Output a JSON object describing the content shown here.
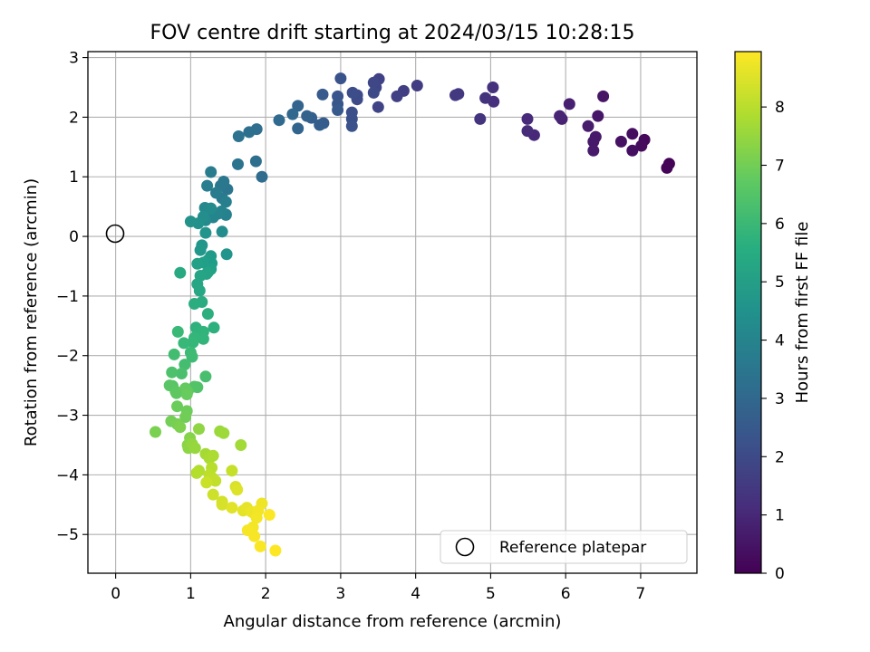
{
  "chart_data": {
    "type": "scatter",
    "title": "FOV centre drift starting at 2024/03/15 10:28:15",
    "xlabel": "Angular distance from reference (arcmin)",
    "ylabel": "Rotation from reference (arcmin)",
    "xlim": [
      -0.37,
      7.75
    ],
    "ylim": [
      -5.65,
      3.1
    ],
    "xticks": [
      0,
      1,
      2,
      3,
      4,
      5,
      6,
      7
    ],
    "yticks": [
      -5,
      -4,
      -3,
      -2,
      -1,
      0,
      1,
      2,
      3
    ],
    "xtick_labels": [
      "0",
      "1",
      "2",
      "3",
      "4",
      "5",
      "6",
      "7"
    ],
    "ytick_labels": [
      "−5",
      "−4",
      "−3",
      "−2",
      "−1",
      "0",
      "1",
      "2",
      "3"
    ],
    "grid": true,
    "colormap": "viridis",
    "colorbar": {
      "label": "Hours from first FF file",
      "range": [
        0,
        8.95
      ],
      "ticks": [
        0,
        1,
        2,
        3,
        4,
        5,
        6,
        7,
        8
      ],
      "tick_labels": [
        "0",
        "1",
        "2",
        "3",
        "4",
        "5",
        "6",
        "7",
        "8"
      ]
    },
    "legend": {
      "placement": "lower-right",
      "entries": [
        {
          "label": "Reference platepar",
          "marker": "open-circle"
        }
      ]
    },
    "reference_point": {
      "x": 0,
      "y": 0
    },
    "points": [
      [
        7.38,
        1.22,
        0.05
      ],
      [
        7.35,
        1.15,
        0.1
      ],
      [
        7.05,
        1.62,
        0.2
      ],
      [
        7.01,
        1.52,
        0.25
      ],
      [
        6.89,
        1.72,
        0.3
      ],
      [
        6.89,
        1.44,
        0.35
      ],
      [
        6.74,
        1.59,
        0.4
      ],
      [
        6.5,
        2.35,
        0.5
      ],
      [
        6.43,
        2.02,
        0.55
      ],
      [
        6.4,
        1.67,
        0.6
      ],
      [
        6.37,
        1.59,
        0.62
      ],
      [
        6.37,
        1.44,
        0.65
      ],
      [
        6.3,
        1.85,
        0.7
      ],
      [
        6.05,
        2.22,
        0.8
      ],
      [
        5.95,
        1.97,
        0.85
      ],
      [
        5.92,
        2.02,
        0.9
      ],
      [
        5.58,
        1.7,
        1.0
      ],
      [
        5.49,
        1.97,
        1.05
      ],
      [
        5.49,
        1.77,
        1.1
      ],
      [
        5.04,
        2.26,
        1.2
      ],
      [
        5.03,
        2.5,
        1.25
      ],
      [
        4.93,
        2.32,
        1.3
      ],
      [
        4.86,
        1.97,
        1.35
      ],
      [
        4.57,
        2.39,
        1.45
      ],
      [
        4.53,
        2.37,
        1.5
      ],
      [
        4.02,
        2.53,
        1.6
      ],
      [
        3.84,
        2.44,
        1.65
      ],
      [
        3.75,
        2.35,
        1.7
      ],
      [
        3.51,
        2.64,
        1.75
      ],
      [
        3.5,
        2.17,
        1.8
      ],
      [
        3.47,
        2.5,
        1.85
      ],
      [
        3.44,
        2.58,
        1.9
      ],
      [
        3.44,
        2.41,
        1.95
      ],
      [
        3.22,
        2.37,
        2.0
      ],
      [
        3.22,
        2.3,
        2.05
      ],
      [
        3.16,
        2.41,
        2.1
      ],
      [
        3.15,
        2.08,
        2.15
      ],
      [
        3.15,
        1.97,
        2.2
      ],
      [
        3.15,
        1.85,
        2.25
      ],
      [
        3.0,
        2.65,
        2.3
      ],
      [
        2.96,
        2.35,
        2.35
      ],
      [
        2.96,
        2.22,
        2.4
      ],
      [
        2.96,
        2.12,
        2.5
      ],
      [
        2.76,
        2.38,
        2.55
      ],
      [
        2.77,
        1.9,
        2.6
      ],
      [
        2.72,
        1.87,
        2.65
      ],
      [
        2.61,
        1.99,
        2.7
      ],
      [
        2.55,
        2.02,
        2.8
      ],
      [
        2.43,
        2.19,
        2.85
      ],
      [
        2.43,
        1.81,
        2.9
      ],
      [
        2.36,
        2.05,
        3.0
      ],
      [
        2.18,
        1.95,
        3.05
      ],
      [
        1.95,
        1.0,
        3.15
      ],
      [
        1.88,
        1.8,
        3.2
      ],
      [
        1.87,
        1.26,
        3.25
      ],
      [
        1.78,
        1.75,
        3.3
      ],
      [
        1.64,
        1.68,
        3.35
      ],
      [
        1.63,
        1.21,
        3.4
      ],
      [
        1.49,
        0.79,
        3.5
      ],
      [
        1.44,
        0.92,
        3.55
      ],
      [
        1.4,
        0.85,
        3.6
      ],
      [
        1.42,
        0.64,
        3.65
      ],
      [
        1.34,
        0.73,
        3.7
      ],
      [
        1.27,
        1.08,
        3.75
      ],
      [
        1.22,
        0.85,
        3.8
      ],
      [
        1.47,
        0.58,
        3.85
      ],
      [
        1.47,
        0.36,
        3.9
      ],
      [
        1.47,
        0.37,
        3.95
      ],
      [
        1.41,
        0.42,
        4.0
      ],
      [
        1.36,
        0.38,
        4.05
      ],
      [
        1.3,
        0.32,
        4.1
      ],
      [
        1.19,
        0.48,
        4.2
      ],
      [
        1.2,
        0.27,
        4.25
      ],
      [
        1.27,
        0.47,
        4.3
      ],
      [
        1.42,
        0.08,
        4.35
      ],
      [
        1.17,
        0.33,
        4.4
      ],
      [
        1.1,
        0.22,
        4.5
      ],
      [
        1.0,
        0.25,
        4.55
      ],
      [
        1.2,
        0.06,
        4.6
      ],
      [
        1.48,
        -0.3,
        4.65
      ],
      [
        1.15,
        -0.15,
        4.7
      ],
      [
        1.13,
        -0.23,
        4.75
      ],
      [
        1.27,
        -0.33,
        4.85
      ],
      [
        1.23,
        -0.4,
        4.9
      ],
      [
        1.28,
        -0.45,
        4.95
      ],
      [
        1.17,
        -0.44,
        5.0
      ],
      [
        1.27,
        -0.55,
        5.05
      ],
      [
        1.09,
        -0.46,
        5.1
      ],
      [
        1.23,
        -0.6,
        5.15
      ],
      [
        1.21,
        -0.63,
        5.2
      ],
      [
        1.13,
        -0.66,
        5.25
      ],
      [
        1.09,
        -0.8,
        5.3
      ],
      [
        1.12,
        -0.91,
        5.35
      ],
      [
        0.86,
        -0.61,
        5.4
      ],
      [
        1.15,
        -1.1,
        5.5
      ],
      [
        1.05,
        -1.13,
        5.55
      ],
      [
        1.23,
        -1.3,
        5.6
      ],
      [
        1.31,
        -1.53,
        5.65
      ],
      [
        1.07,
        -1.53,
        5.7
      ],
      [
        1.1,
        -1.6,
        5.75
      ],
      [
        1.17,
        -1.6,
        5.8
      ],
      [
        1.17,
        -1.72,
        5.85
      ],
      [
        1.05,
        -1.7,
        5.9
      ],
      [
        1.03,
        -1.78,
        5.95
      ],
      [
        0.91,
        -1.79,
        6.0
      ],
      [
        0.83,
        -1.6,
        6.05
      ],
      [
        1.0,
        -1.95,
        6.1
      ],
      [
        1.02,
        -2.02,
        6.15
      ],
      [
        0.78,
        -1.98,
        6.2
      ],
      [
        0.92,
        -2.15,
        6.25
      ],
      [
        1.2,
        -2.35,
        6.3
      ],
      [
        0.88,
        -2.3,
        6.35
      ],
      [
        0.75,
        -2.28,
        6.4
      ],
      [
        1.09,
        -2.53,
        6.45
      ],
      [
        1.05,
        -2.52,
        6.5
      ],
      [
        0.76,
        -2.51,
        6.55
      ],
      [
        0.72,
        -2.5,
        6.6
      ],
      [
        0.8,
        -2.6,
        6.65
      ],
      [
        0.81,
        -2.63,
        6.7
      ],
      [
        0.96,
        -2.6,
        6.75
      ],
      [
        0.93,
        -2.55,
        6.8
      ],
      [
        0.95,
        -2.65,
        6.85
      ],
      [
        0.82,
        -2.85,
        6.9
      ],
      [
        0.95,
        -2.93,
        6.95
      ],
      [
        0.93,
        -3.03,
        7.0
      ],
      [
        0.74,
        -3.1,
        7.05
      ],
      [
        0.82,
        -3.15,
        7.1
      ],
      [
        0.53,
        -3.28,
        7.15
      ],
      [
        0.86,
        -3.2,
        7.2
      ],
      [
        0.99,
        -3.38,
        7.3
      ],
      [
        0.96,
        -3.5,
        7.35
      ],
      [
        0.97,
        -3.55,
        7.4
      ],
      [
        1.11,
        -3.23,
        7.45
      ],
      [
        1.02,
        -3.48,
        7.5
      ],
      [
        1.06,
        -3.55,
        7.55
      ],
      [
        1.39,
        -3.27,
        7.6
      ],
      [
        1.44,
        -3.3,
        7.65
      ],
      [
        1.67,
        -3.5,
        7.7
      ],
      [
        1.2,
        -3.65,
        7.75
      ],
      [
        1.25,
        -3.72,
        7.8
      ],
      [
        1.3,
        -3.68,
        7.85
      ],
      [
        1.11,
        -3.93,
        7.9
      ],
      [
        1.08,
        -3.97,
        7.95
      ],
      [
        1.28,
        -3.88,
        8.0
      ],
      [
        1.25,
        -4.0,
        8.05
      ],
      [
        1.29,
        -4.05,
        8.1
      ],
      [
        1.33,
        -4.1,
        8.15
      ],
      [
        1.55,
        -3.93,
        8.2
      ],
      [
        1.21,
        -4.13,
        8.25
      ],
      [
        1.3,
        -4.33,
        8.3
      ],
      [
        1.42,
        -4.45,
        8.35
      ],
      [
        1.42,
        -4.5,
        8.4
      ],
      [
        1.6,
        -4.2,
        8.45
      ],
      [
        1.62,
        -4.25,
        8.5
      ],
      [
        1.55,
        -4.55,
        8.55
      ],
      [
        1.7,
        -4.6,
        8.6
      ],
      [
        1.75,
        -4.55,
        8.65
      ],
      [
        1.81,
        -4.62,
        8.7
      ],
      [
        1.85,
        -4.65,
        8.72
      ],
      [
        1.95,
        -4.48,
        8.75
      ],
      [
        1.9,
        -4.6,
        8.78
      ],
      [
        1.88,
        -4.72,
        8.8
      ],
      [
        1.83,
        -4.88,
        8.82
      ],
      [
        1.76,
        -4.93,
        8.85
      ],
      [
        1.85,
        -5.03,
        8.87
      ],
      [
        1.93,
        -5.2,
        8.9
      ],
      [
        2.05,
        -4.67,
        8.92
      ],
      [
        2.13,
        -5.27,
        8.95
      ]
    ]
  }
}
